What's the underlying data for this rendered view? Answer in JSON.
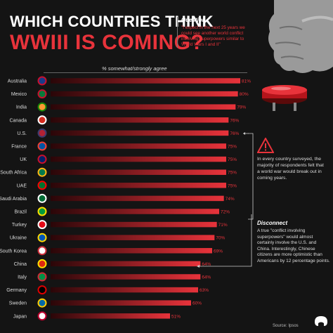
{
  "header": {
    "title_line1": "WHICH COUNTRIES THINK",
    "title_line2": "WWIII IS COMING?"
  },
  "question": {
    "label": "Question",
    "text": "\"I expect in the next 25 years we could see another world conflict involving superpowers similar to World Wars I and II\""
  },
  "notes": {
    "note1": "In every country surveyed, the majority of respondents felt that a world war would break out in coming years.",
    "disconnect_title": "Disconnect",
    "disconnect_text": "A true \"conflict involving superpowers\" would almost certainly involve the U.S. and China. Interestingly, Chinese citizens are more optimistic than Americans by 12 percentage points."
  },
  "footer": {
    "source": "Source: Ipsos"
  },
  "colors": {
    "background": "#141414",
    "accent": "#e8333b",
    "bar_dark": "#3a0a0c",
    "bar_bright": "#e8333b"
  },
  "chart_data": {
    "type": "bar",
    "orientation": "horizontal",
    "title": "% somewhat/strongly agree",
    "categories": [
      "Australia",
      "Mexico",
      "India",
      "Canada",
      "U.S.",
      "France",
      "UK",
      "South Africa",
      "UAE",
      "Saudi Arabia",
      "Brazil",
      "Turkey",
      "Ukraine",
      "South Korea",
      "China",
      "Italy",
      "Germany",
      "Sweden",
      "Japan"
    ],
    "values": [
      81,
      80,
      79,
      76,
      76,
      75,
      75,
      75,
      75,
      74,
      72,
      71,
      70,
      69,
      64,
      64,
      63,
      60,
      51
    ],
    "value_labels": [
      "81%",
      "80%",
      "79%",
      "76%",
      "76%",
      "75%",
      "75%",
      "75%",
      "75%",
      "74%",
      "72%",
      "71%",
      "70%",
      "69%",
      "64%",
      "64%",
      "63%",
      "60%",
      "51%"
    ],
    "xlim": [
      0,
      81
    ],
    "grid": false,
    "highlighted": [
      "U.S.",
      "China"
    ]
  }
}
